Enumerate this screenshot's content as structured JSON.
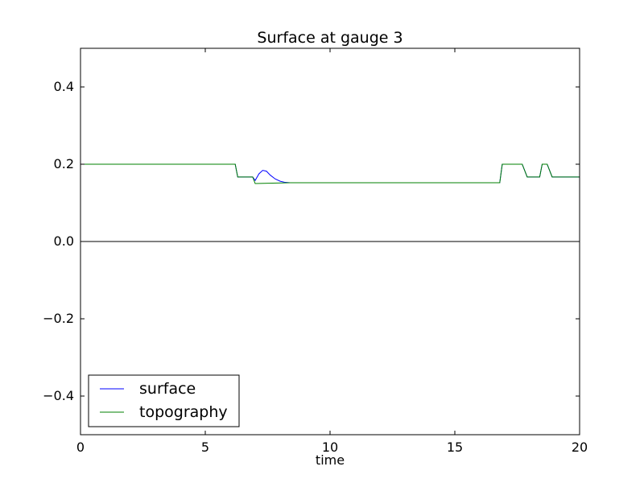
{
  "chart_data": {
    "type": "line",
    "title": "Surface at gauge 3",
    "xlabel": "time",
    "ylabel": "",
    "xlim": [
      0,
      20
    ],
    "ylim": [
      -0.5,
      0.5
    ],
    "x_ticks": [
      0,
      5,
      10,
      15,
      20
    ],
    "x_tick_labels": [
      "0",
      "5",
      "10",
      "15",
      "20"
    ],
    "y_ticks": [
      -0.4,
      -0.2,
      0.0,
      0.2,
      0.4
    ],
    "y_tick_labels": [
      "−0.4",
      "−0.2",
      "0.0",
      "0.2",
      "0.4"
    ],
    "grid": false,
    "reference_line": {
      "y": 0.0,
      "color": "#000000"
    },
    "legend": {
      "position": "lower-left",
      "entries": [
        "surface",
        "topography"
      ]
    },
    "series": [
      {
        "name": "surface",
        "color": "#0000ff",
        "x": [
          0,
          6.2,
          6.3,
          6.9,
          7.0,
          7.15,
          7.3,
          7.45,
          7.6,
          7.8,
          8.0,
          8.2,
          8.4,
          16.8,
          16.9,
          17.7,
          17.9,
          18.4,
          18.5,
          18.7,
          18.9,
          20
        ],
        "y": [
          0.2,
          0.2,
          0.167,
          0.167,
          0.158,
          0.175,
          0.184,
          0.182,
          0.172,
          0.162,
          0.156,
          0.153,
          0.152,
          0.152,
          0.2,
          0.2,
          0.167,
          0.167,
          0.2,
          0.2,
          0.167,
          0.167
        ]
      },
      {
        "name": "topography",
        "color": "#008000",
        "x": [
          0,
          6.2,
          6.3,
          6.9,
          7.0,
          8.4,
          16.8,
          16.9,
          17.7,
          17.9,
          18.4,
          18.5,
          18.7,
          18.9,
          20
        ],
        "y": [
          0.2,
          0.2,
          0.167,
          0.167,
          0.15,
          0.152,
          0.152,
          0.2,
          0.2,
          0.167,
          0.167,
          0.2,
          0.2,
          0.167,
          0.167
        ]
      }
    ]
  }
}
